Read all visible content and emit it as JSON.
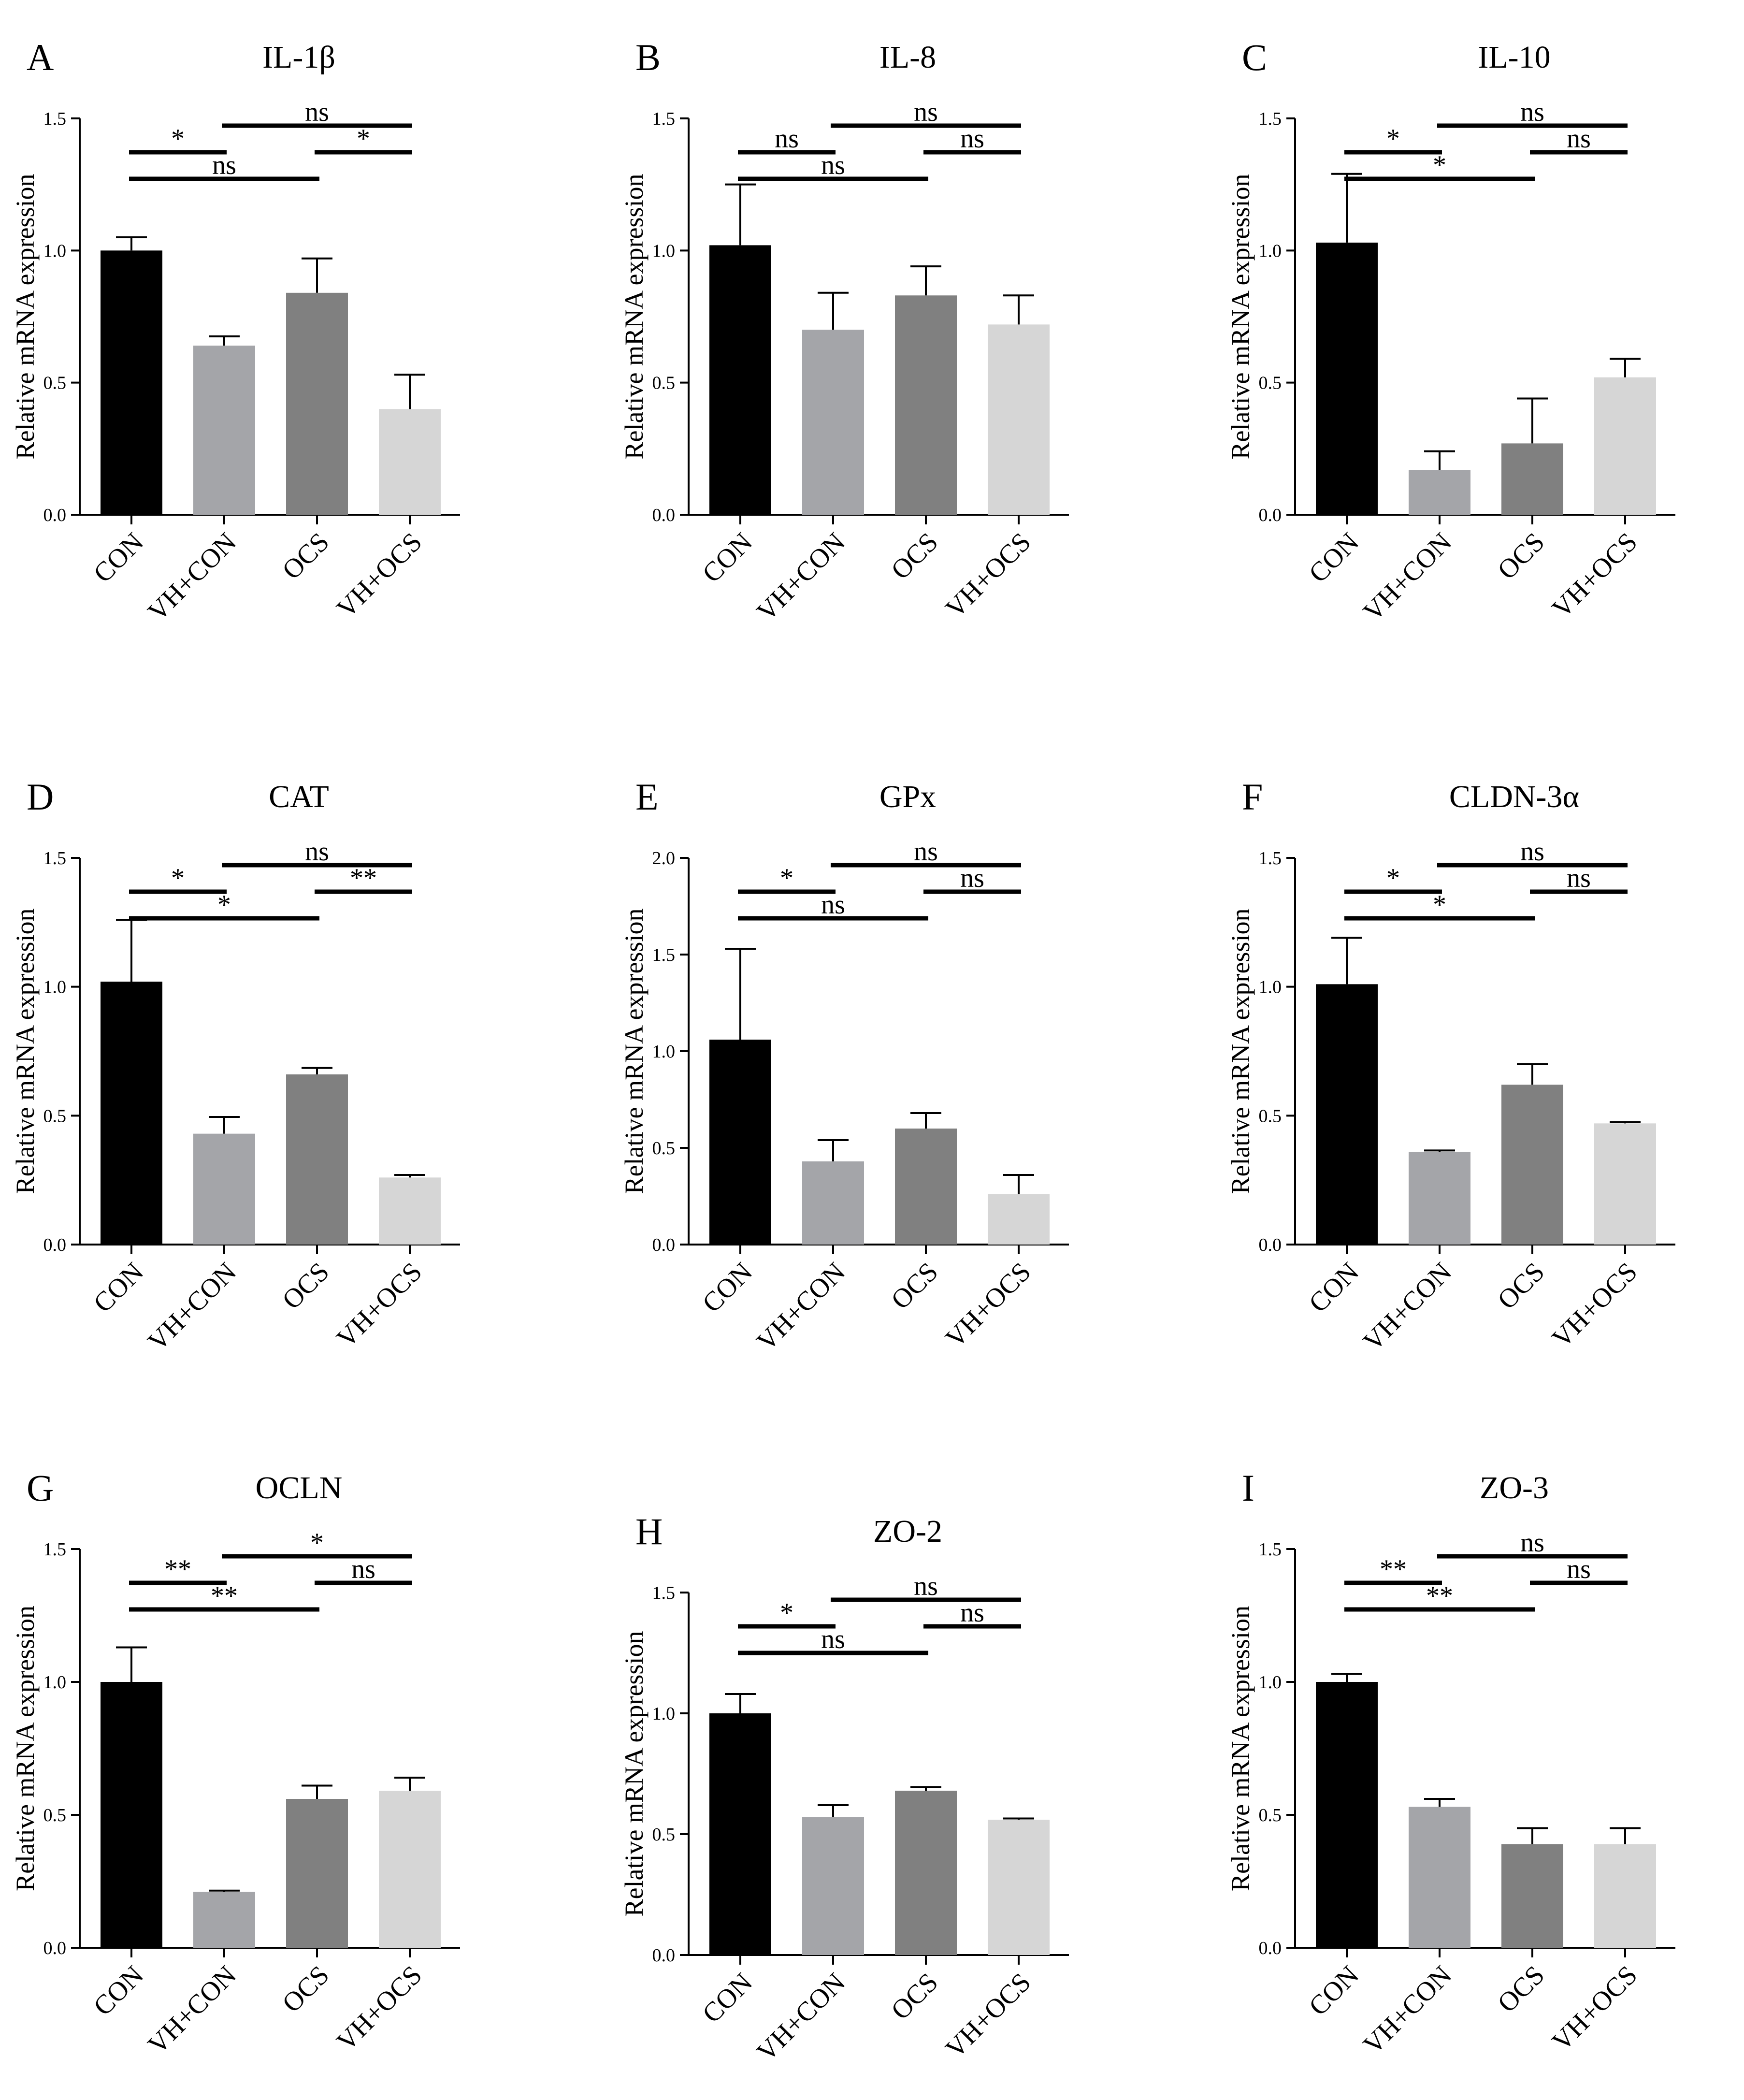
{
  "colors": {
    "CON": "#000000",
    "VH+CON": "#a4a5a9",
    "OCS": "#808080",
    "VH+OCS": "#d6d6d6",
    "axis": "#000000"
  },
  "chart_data": [
    {
      "type": "bar",
      "letter": "A",
      "title": "IL-1β",
      "ylabel": "Relative mRNA expression",
      "categories": [
        "CON",
        "VH+CON",
        "OCS",
        "VH+OCS"
      ],
      "values": [
        1.0,
        0.64,
        0.84,
        0.4
      ],
      "errors": [
        0.05,
        0.035,
        0.13,
        0.13
      ],
      "ylim": [
        0,
        1.5
      ],
      "yticks": [
        "0.0",
        "0.5",
        "1.0",
        "1.5"
      ],
      "tick_values": [
        0,
        0.5,
        1.0,
        1.5
      ],
      "significance": [
        {
          "from": 0,
          "to": 1,
          "label": "*",
          "level": 2
        },
        {
          "from": 0,
          "to": 2,
          "label": "ns",
          "level": 1
        },
        {
          "from": 1,
          "to": 3,
          "label": "ns",
          "level": 3
        },
        {
          "from": 2,
          "to": 3,
          "label": "*",
          "level": 2
        }
      ]
    },
    {
      "type": "bar",
      "letter": "B",
      "title": "IL-8",
      "ylabel": "Relative mRNA expression",
      "categories": [
        "CON",
        "VH+CON",
        "OCS",
        "VH+OCS"
      ],
      "values": [
        1.02,
        0.7,
        0.83,
        0.72
      ],
      "errors": [
        0.23,
        0.14,
        0.11,
        0.11
      ],
      "ylim": [
        0,
        1.5
      ],
      "yticks": [
        "0.0",
        "0.5",
        "1.0",
        "1.5"
      ],
      "tick_values": [
        0,
        0.5,
        1.0,
        1.5
      ],
      "significance": [
        {
          "from": 0,
          "to": 1,
          "label": "ns",
          "level": 2
        },
        {
          "from": 0,
          "to": 2,
          "label": "ns",
          "level": 1
        },
        {
          "from": 1,
          "to": 3,
          "label": "ns",
          "level": 3
        },
        {
          "from": 2,
          "to": 3,
          "label": "ns",
          "level": 2
        }
      ]
    },
    {
      "type": "bar",
      "letter": "C",
      "title": "IL-10",
      "ylabel": "Relative mRNA expression",
      "categories": [
        "CON",
        "VH+CON",
        "OCS",
        "VH+OCS"
      ],
      "values": [
        1.03,
        0.17,
        0.27,
        0.52
      ],
      "errors": [
        0.26,
        0.07,
        0.17,
        0.07
      ],
      "ylim": [
        0,
        1.5
      ],
      "yticks": [
        "0.0",
        "0.5",
        "1.0",
        "1.5"
      ],
      "tick_values": [
        0,
        0.5,
        1.0,
        1.5
      ],
      "significance": [
        {
          "from": 0,
          "to": 1,
          "label": "*",
          "level": 2
        },
        {
          "from": 0,
          "to": 2,
          "label": "*",
          "level": 1
        },
        {
          "from": 1,
          "to": 3,
          "label": "ns",
          "level": 3
        },
        {
          "from": 2,
          "to": 3,
          "label": "ns",
          "level": 2
        }
      ]
    },
    {
      "type": "bar",
      "letter": "D",
      "title": "CAT",
      "ylabel": "Relative mRNA expression",
      "categories": [
        "CON",
        "VH+CON",
        "OCS",
        "VH+OCS"
      ],
      "values": [
        1.02,
        0.43,
        0.66,
        0.26
      ],
      "errors": [
        0.24,
        0.065,
        0.025,
        0.01
      ],
      "ylim": [
        0,
        1.5
      ],
      "yticks": [
        "0.0",
        "0.5",
        "1.0",
        "1.5"
      ],
      "tick_values": [
        0,
        0.5,
        1.0,
        1.5
      ],
      "significance": [
        {
          "from": 0,
          "to": 1,
          "label": "*",
          "level": 2
        },
        {
          "from": 0,
          "to": 2,
          "label": "*",
          "level": 1
        },
        {
          "from": 1,
          "to": 3,
          "label": "ns",
          "level": 3
        },
        {
          "from": 2,
          "to": 3,
          "label": "**",
          "level": 2
        }
      ]
    },
    {
      "type": "bar",
      "letter": "E",
      "title": "GPx",
      "ylabel": "Relative mRNA expression",
      "categories": [
        "CON",
        "VH+CON",
        "OCS",
        "VH+OCS"
      ],
      "values": [
        1.06,
        0.43,
        0.6,
        0.26
      ],
      "errors": [
        0.47,
        0.11,
        0.08,
        0.1
      ],
      "ylim": [
        0,
        2.0
      ],
      "yticks": [
        "0.0",
        "0.5",
        "1.0",
        "1.5",
        "2.0"
      ],
      "tick_values": [
        0,
        0.5,
        1.0,
        1.5,
        2.0
      ],
      "significance": [
        {
          "from": 0,
          "to": 1,
          "label": "*",
          "level": 2
        },
        {
          "from": 0,
          "to": 2,
          "label": "ns",
          "level": 1
        },
        {
          "from": 1,
          "to": 3,
          "label": "ns",
          "level": 3
        },
        {
          "from": 2,
          "to": 3,
          "label": "ns",
          "level": 2
        }
      ]
    },
    {
      "type": "bar",
      "letter": "F",
      "title": "CLDN-3α",
      "ylabel": "Relative mRNA expression",
      "categories": [
        "CON",
        "VH+CON",
        "OCS",
        "VH+OCS"
      ],
      "values": [
        1.01,
        0.36,
        0.62,
        0.47
      ],
      "errors": [
        0.18,
        0.005,
        0.08,
        0.005
      ],
      "ylim": [
        0,
        1.5
      ],
      "yticks": [
        "0.0",
        "0.5",
        "1.0",
        "1.5"
      ],
      "tick_values": [
        0,
        0.5,
        1.0,
        1.5
      ],
      "significance": [
        {
          "from": 0,
          "to": 1,
          "label": "*",
          "level": 2
        },
        {
          "from": 0,
          "to": 2,
          "label": "*",
          "level": 1
        },
        {
          "from": 1,
          "to": 3,
          "label": "ns",
          "level": 3
        },
        {
          "from": 2,
          "to": 3,
          "label": "ns",
          "level": 2
        }
      ]
    },
    {
      "type": "bar",
      "letter": "G",
      "title": "OCLN",
      "ylabel": "Relative mRNA expression",
      "categories": [
        "CON",
        "VH+CON",
        "OCS",
        "VH+OCS"
      ],
      "values": [
        1.0,
        0.21,
        0.56,
        0.59
      ],
      "errors": [
        0.13,
        0.005,
        0.05,
        0.05
      ],
      "ylim": [
        0,
        1.5
      ],
      "yticks": [
        "0.0",
        "0.5",
        "1.0",
        "1.5"
      ],
      "tick_values": [
        0,
        0.5,
        1.0,
        1.5
      ],
      "significance": [
        {
          "from": 0,
          "to": 1,
          "label": "**",
          "level": 2
        },
        {
          "from": 0,
          "to": 2,
          "label": "**",
          "level": 1
        },
        {
          "from": 1,
          "to": 3,
          "label": "*",
          "level": 3
        },
        {
          "from": 2,
          "to": 3,
          "label": "ns",
          "level": 2
        }
      ]
    },
    {
      "type": "bar",
      "letter": "H",
      "title": "ZO-2",
      "ylabel": "Relative mRNA expression",
      "categories": [
        "CON",
        "VH+CON",
        "OCS",
        "VH+OCS"
      ],
      "values": [
        1.0,
        0.57,
        0.68,
        0.56
      ],
      "errors": [
        0.08,
        0.05,
        0.015,
        0.005
      ],
      "ylim": [
        0,
        1.5
      ],
      "yticks": [
        "0.0",
        "0.5",
        "1.0",
        "1.5"
      ],
      "tick_values": [
        0,
        0.5,
        1.0,
        1.5
      ],
      "significance": [
        {
          "from": 0,
          "to": 1,
          "label": "*",
          "level": 2
        },
        {
          "from": 0,
          "to": 2,
          "label": "ns",
          "level": 1
        },
        {
          "from": 1,
          "to": 3,
          "label": "ns",
          "level": 3
        },
        {
          "from": 2,
          "to": 3,
          "label": "ns",
          "level": 2
        }
      ]
    },
    {
      "type": "bar",
      "letter": "I",
      "title": "ZO-3",
      "ylabel": "Relative mRNA expression",
      "categories": [
        "CON",
        "VH+CON",
        "OCS",
        "VH+OCS"
      ],
      "values": [
        1.0,
        0.53,
        0.39,
        0.39
      ],
      "errors": [
        0.03,
        0.03,
        0.06,
        0.06
      ],
      "ylim": [
        0,
        1.5
      ],
      "yticks": [
        "0.0",
        "0.5",
        "1.0",
        "1.5"
      ],
      "tick_values": [
        0,
        0.5,
        1.0,
        1.5
      ],
      "significance": [
        {
          "from": 0,
          "to": 1,
          "label": "**",
          "level": 2
        },
        {
          "from": 0,
          "to": 2,
          "label": "**",
          "level": 1
        },
        {
          "from": 1,
          "to": 3,
          "label": "ns",
          "level": 3
        },
        {
          "from": 2,
          "to": 3,
          "label": "ns",
          "level": 2
        }
      ]
    }
  ]
}
